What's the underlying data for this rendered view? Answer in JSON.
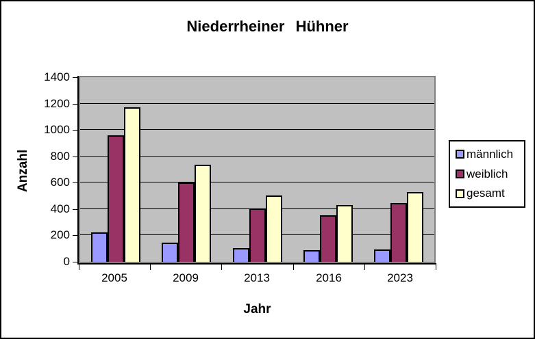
{
  "chart_data": {
    "type": "bar",
    "title": "Niederrheiner Hühner",
    "xlabel": "Jahr",
    "ylabel": "Anzahl",
    "categories": [
      "2005",
      "2009",
      "2013",
      "2016",
      "2023"
    ],
    "series": [
      {
        "name": "männlich",
        "color": "#9999FF",
        "values": [
          210,
          135,
          95,
          80,
          85
        ]
      },
      {
        "name": "weiblich",
        "color": "#993366",
        "values": [
          950,
          590,
          395,
          340,
          435
        ]
      },
      {
        "name": "gesamt",
        "color": "#FFFFCC",
        "values": [
          1160,
          725,
          490,
          420,
          520
        ]
      }
    ],
    "ylim": [
      0,
      1400
    ],
    "ytick_step": 200,
    "grid": true,
    "legend_position": "right",
    "plot_bg": "#C0C0C0",
    "plot_border_color": "#808080",
    "gridline_color": "#000000"
  }
}
